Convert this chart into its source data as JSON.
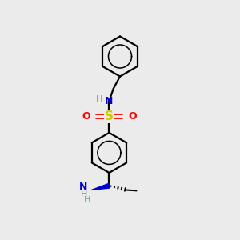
{
  "bg_color": "#ebebeb",
  "bond_color": "#000000",
  "N_color": "#0000cc",
  "S_color": "#cccc00",
  "O_color": "#ff0000",
  "H_color": "#7a9a9a",
  "figsize": [
    3.0,
    3.0
  ],
  "dpi": 100,
  "xlim": [
    0,
    10
  ],
  "ylim": [
    0,
    10
  ],
  "ring_r": 0.85,
  "lw": 1.6
}
